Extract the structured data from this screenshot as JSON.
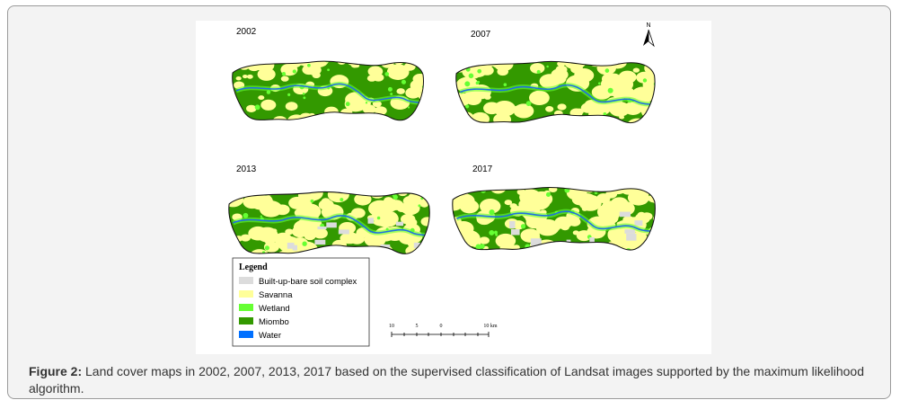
{
  "figure": {
    "panels": [
      {
        "year": "2002"
      },
      {
        "year": "2007"
      },
      {
        "year": "2013"
      },
      {
        "year": "2017"
      }
    ],
    "north": "N",
    "legend": {
      "title": "Legend",
      "items": [
        "Built-up-bare soil complex",
        "Savanna",
        "Wetland",
        "Miombo",
        "Water"
      ]
    },
    "scale": {
      "labels": [
        "10",
        "5",
        "0",
        "10 km"
      ]
    },
    "caption": {
      "label": "Figure 2:",
      "text": "Land cover maps in 2002, 2007, 2013, 2017 based on the supervised classification of Landsat images supported by the maximum likelihood algorithm."
    }
  }
}
